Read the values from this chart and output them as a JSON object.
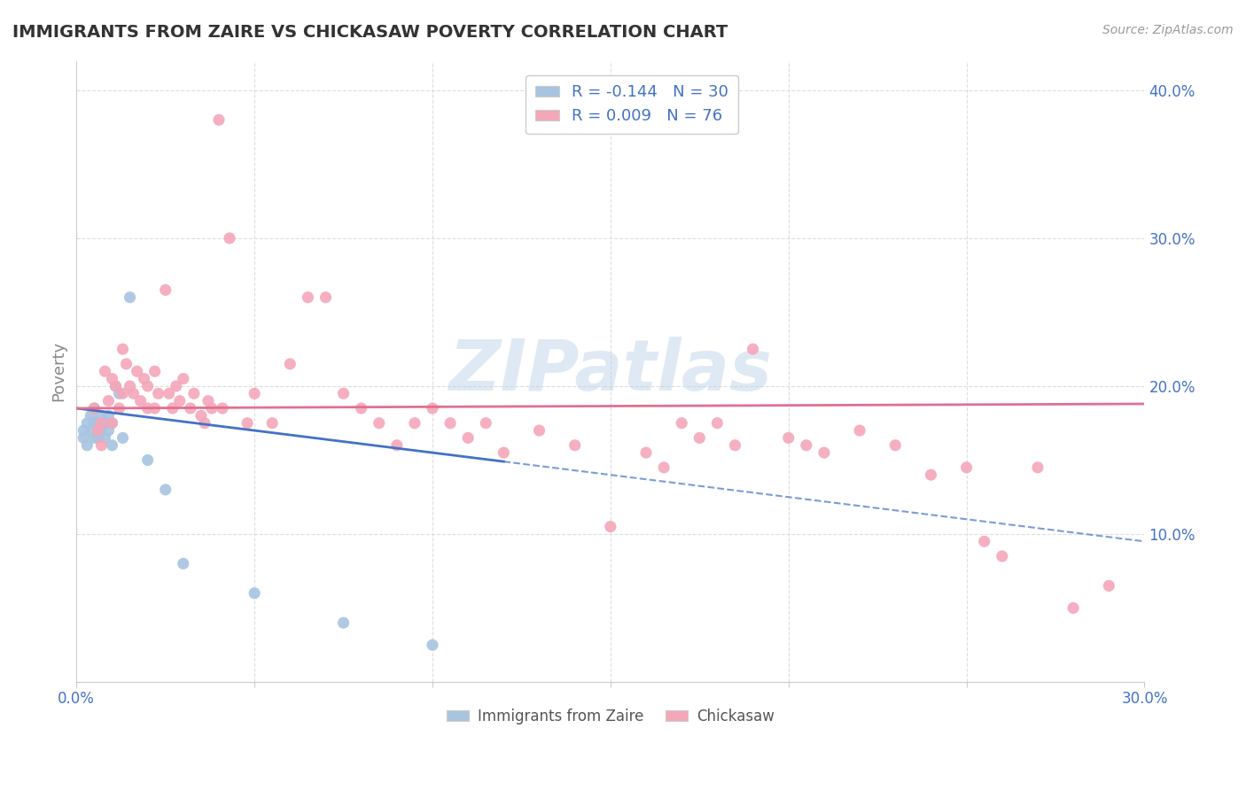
{
  "title": "IMMIGRANTS FROM ZAIRE VS CHICKASAW POVERTY CORRELATION CHART",
  "source": "Source: ZipAtlas.com",
  "ylabel": "Poverty",
  "legend_r1": "R = -0.144",
  "legend_n1": "N = 30",
  "legend_r2": "R = 0.009",
  "legend_n2": "N = 76",
  "xlim": [
    0.0,
    0.3
  ],
  "ylim": [
    0.0,
    0.42
  ],
  "blue_color": "#a8c4e0",
  "pink_color": "#f4a7b9",
  "blue_line_color": "#4472c4",
  "pink_line_color": "#e07090",
  "watermark": "ZIPatlas",
  "blue_scatter": [
    [
      0.002,
      0.17
    ],
    [
      0.002,
      0.165
    ],
    [
      0.003,
      0.175
    ],
    [
      0.003,
      0.16
    ],
    [
      0.004,
      0.18
    ],
    [
      0.004,
      0.17
    ],
    [
      0.005,
      0.175
    ],
    [
      0.005,
      0.165
    ],
    [
      0.005,
      0.185
    ],
    [
      0.006,
      0.17
    ],
    [
      0.006,
      0.165
    ],
    [
      0.006,
      0.175
    ],
    [
      0.007,
      0.18
    ],
    [
      0.007,
      0.17
    ],
    [
      0.008,
      0.175
    ],
    [
      0.008,
      0.165
    ],
    [
      0.009,
      0.18
    ],
    [
      0.009,
      0.17
    ],
    [
      0.01,
      0.175
    ],
    [
      0.01,
      0.16
    ],
    [
      0.011,
      0.2
    ],
    [
      0.012,
      0.195
    ],
    [
      0.013,
      0.165
    ],
    [
      0.015,
      0.26
    ],
    [
      0.02,
      0.15
    ],
    [
      0.025,
      0.13
    ],
    [
      0.03,
      0.08
    ],
    [
      0.05,
      0.06
    ],
    [
      0.075,
      0.04
    ],
    [
      0.1,
      0.025
    ]
  ],
  "pink_scatter": [
    [
      0.005,
      0.185
    ],
    [
      0.006,
      0.17
    ],
    [
      0.007,
      0.175
    ],
    [
      0.007,
      0.16
    ],
    [
      0.008,
      0.21
    ],
    [
      0.009,
      0.19
    ],
    [
      0.01,
      0.205
    ],
    [
      0.01,
      0.175
    ],
    [
      0.011,
      0.2
    ],
    [
      0.012,
      0.185
    ],
    [
      0.013,
      0.225
    ],
    [
      0.013,
      0.195
    ],
    [
      0.014,
      0.215
    ],
    [
      0.015,
      0.2
    ],
    [
      0.016,
      0.195
    ],
    [
      0.017,
      0.21
    ],
    [
      0.018,
      0.19
    ],
    [
      0.019,
      0.205
    ],
    [
      0.02,
      0.185
    ],
    [
      0.02,
      0.2
    ],
    [
      0.022,
      0.21
    ],
    [
      0.022,
      0.185
    ],
    [
      0.023,
      0.195
    ],
    [
      0.025,
      0.265
    ],
    [
      0.026,
      0.195
    ],
    [
      0.027,
      0.185
    ],
    [
      0.028,
      0.2
    ],
    [
      0.029,
      0.19
    ],
    [
      0.03,
      0.205
    ],
    [
      0.032,
      0.185
    ],
    [
      0.033,
      0.195
    ],
    [
      0.035,
      0.18
    ],
    [
      0.036,
      0.175
    ],
    [
      0.037,
      0.19
    ],
    [
      0.038,
      0.185
    ],
    [
      0.04,
      0.38
    ],
    [
      0.041,
      0.185
    ],
    [
      0.043,
      0.3
    ],
    [
      0.048,
      0.175
    ],
    [
      0.05,
      0.195
    ],
    [
      0.055,
      0.175
    ],
    [
      0.06,
      0.215
    ],
    [
      0.065,
      0.26
    ],
    [
      0.07,
      0.26
    ],
    [
      0.075,
      0.195
    ],
    [
      0.08,
      0.185
    ],
    [
      0.085,
      0.175
    ],
    [
      0.09,
      0.16
    ],
    [
      0.095,
      0.175
    ],
    [
      0.1,
      0.185
    ],
    [
      0.105,
      0.175
    ],
    [
      0.11,
      0.165
    ],
    [
      0.115,
      0.175
    ],
    [
      0.12,
      0.155
    ],
    [
      0.13,
      0.17
    ],
    [
      0.14,
      0.16
    ],
    [
      0.15,
      0.105
    ],
    [
      0.16,
      0.155
    ],
    [
      0.165,
      0.145
    ],
    [
      0.17,
      0.175
    ],
    [
      0.175,
      0.165
    ],
    [
      0.18,
      0.175
    ],
    [
      0.185,
      0.16
    ],
    [
      0.19,
      0.225
    ],
    [
      0.2,
      0.165
    ],
    [
      0.205,
      0.16
    ],
    [
      0.21,
      0.155
    ],
    [
      0.22,
      0.17
    ],
    [
      0.23,
      0.16
    ],
    [
      0.24,
      0.14
    ],
    [
      0.25,
      0.145
    ],
    [
      0.255,
      0.095
    ],
    [
      0.26,
      0.085
    ],
    [
      0.27,
      0.145
    ],
    [
      0.28,
      0.05
    ],
    [
      0.29,
      0.065
    ]
  ],
  "blue_line_solid_end": 0.12,
  "blue_line_x0": 0.0,
  "blue_line_x1": 0.3,
  "blue_line_y0": 0.185,
  "blue_line_y1": 0.095,
  "pink_line_x0": 0.0,
  "pink_line_x1": 0.3,
  "pink_line_y0": 0.185,
  "pink_line_y1": 0.188
}
